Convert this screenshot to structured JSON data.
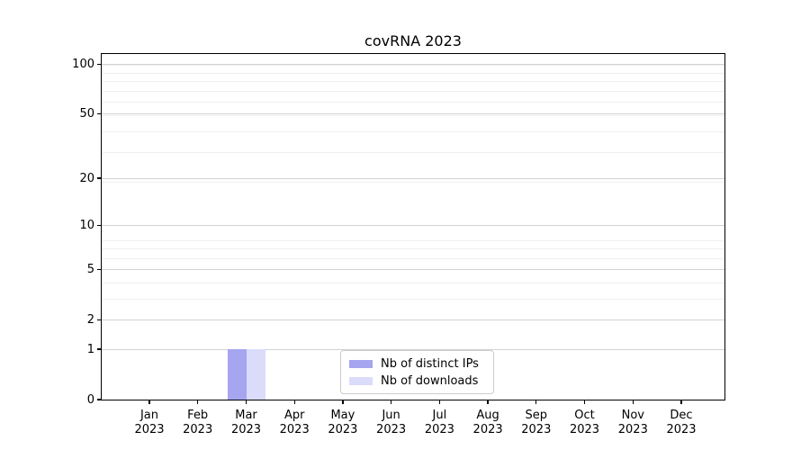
{
  "chart_data": {
    "type": "bar",
    "title": "covRNA 2023",
    "categories": [
      "Jan",
      "Feb",
      "Mar",
      "Apr",
      "May",
      "Jun",
      "Jul",
      "Aug",
      "Sep",
      "Oct",
      "Nov",
      "Dec"
    ],
    "tick_year_label": "2023",
    "series": [
      {
        "name": "Nb of distinct IPs",
        "color": "#a5a5f0",
        "values": [
          0,
          0,
          1,
          0,
          0,
          0,
          0,
          0,
          0,
          0,
          0,
          0
        ]
      },
      {
        "name": "Nb of downloads",
        "color": "#dbdbfa",
        "values": [
          0,
          0,
          1,
          0,
          0,
          0,
          0,
          0,
          0,
          0,
          0,
          0
        ]
      }
    ],
    "y_ticks": [
      0,
      1,
      2,
      5,
      10,
      20,
      50,
      100
    ],
    "y_minor_ticks": [
      1,
      2,
      3,
      4,
      5,
      6,
      7,
      8,
      19,
      29,
      39,
      49,
      59,
      69,
      79,
      89,
      99
    ],
    "y_scale": "log1p",
    "ylim": [
      0,
      115
    ],
    "grid": "on",
    "legend_position": "lower center inside",
    "xlabel": "",
    "ylabel": ""
  }
}
